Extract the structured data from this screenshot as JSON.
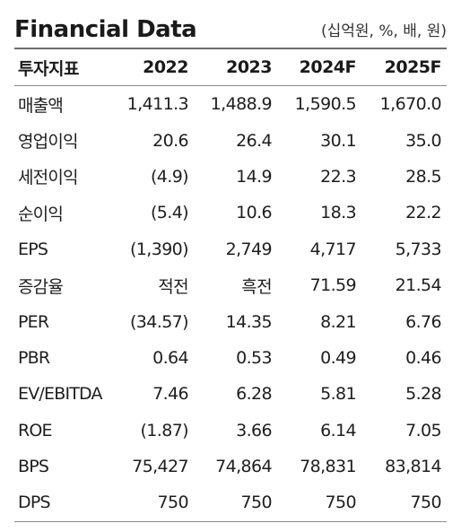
{
  "title": "Financial Data",
  "unit": "(십억원, %, 배, 원)",
  "table": {
    "header": [
      "투자지표",
      "2022",
      "2023",
      "2024F",
      "2025F"
    ],
    "rows": [
      [
        "매출액",
        "1,411.3",
        "1,488.9",
        "1,590.5",
        "1,670.0"
      ],
      [
        "영업이익",
        "20.6",
        "26.4",
        "30.1",
        "35.0"
      ],
      [
        "세전이익",
        "(4.9)",
        "14.9",
        "22.3",
        "28.5"
      ],
      [
        "순이익",
        "(5.4)",
        "10.6",
        "18.3",
        "22.2"
      ],
      [
        "EPS",
        "(1,390)",
        "2,749",
        "4,717",
        "5,733"
      ],
      [
        "증감율",
        "적전",
        "흑전",
        "71.59",
        "21.54"
      ],
      [
        "PER",
        "(34.57)",
        "14.35",
        "8.21",
        "6.76"
      ],
      [
        "PBR",
        "0.64",
        "0.53",
        "0.49",
        "0.46"
      ],
      [
        "EV/EBITDA",
        "7.46",
        "6.28",
        "5.81",
        "5.28"
      ],
      [
        "ROE",
        "(1.87)",
        "3.66",
        "6.14",
        "7.05"
      ],
      [
        "BPS",
        "75,427",
        "74,864",
        "78,831",
        "83,814"
      ],
      [
        "DPS",
        "750",
        "750",
        "750",
        "750"
      ]
    ]
  }
}
